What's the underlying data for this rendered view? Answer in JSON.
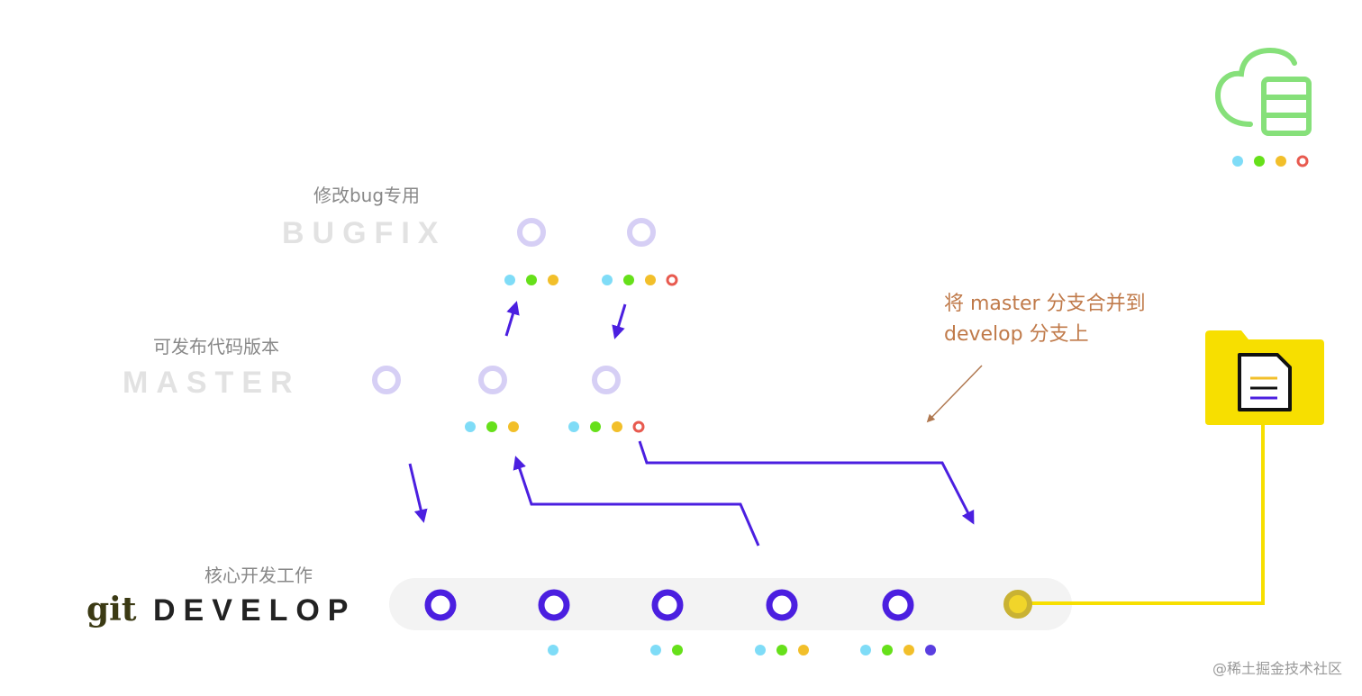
{
  "colors": {
    "accent": "#4b1fe0",
    "light_ring": "#d6cff5",
    "cyan": "#7fdcf7",
    "green": "#66e01a",
    "yellow": "#f2bf2a",
    "red": "#e85a4f",
    "purple": "#5a3ee0",
    "folder": "#f7df00",
    "annotation": "#c07a4a",
    "cloud": "#86e07a"
  },
  "bugfix": {
    "subtitle": "修改bug专用",
    "title": "BUGFIX"
  },
  "master": {
    "subtitle": "可发布代码版本",
    "title": "MASTER"
  },
  "develop": {
    "subtitle": "核心开发工作",
    "logo": "git",
    "title": "DEVELOP"
  },
  "annotation": {
    "line1": "将 master 分支合并到",
    "line2": "develop 分支上"
  },
  "icons": [
    "cloud-server-icon",
    "folder-document-icon"
  ],
  "watermark": "@稀土掘金技术社区"
}
